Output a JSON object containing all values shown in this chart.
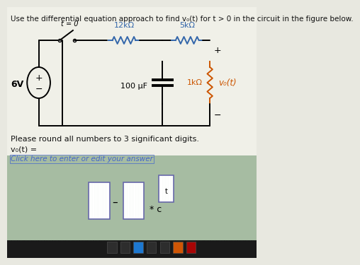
{
  "title": "Use the differential equation approach to find v₀(t) for t > 0 in the circuit in the figure below.",
  "bg_top": "#e8e8e0",
  "bg_bottom": "#b8c8b8",
  "circuit_bg": "#f0f0e8",
  "text_color": "#111111",
  "blue_color": "#3366aa",
  "orange_color": "#cc5500",
  "R1_label": "12kΩ",
  "R2_label": "5kΩ",
  "C_label": "100 μF",
  "R3_label": "1kΩ",
  "Vs_label": "6V",
  "switch_label": "t = 0",
  "vo_label2": "v₀(t)",
  "please_round": "Please round all numbers to 3 significant digits.",
  "vo_eq": "v₀(t) =",
  "click_text": "Click here to enter or edit your answer"
}
